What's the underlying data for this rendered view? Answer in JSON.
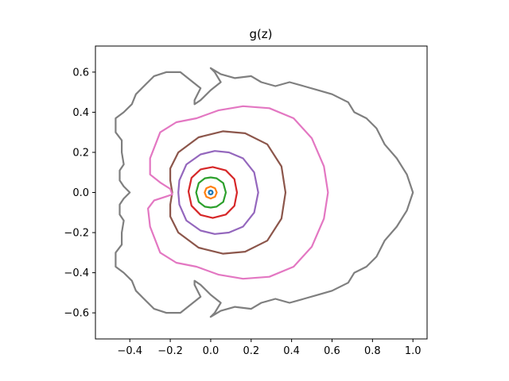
{
  "chart_data": {
    "type": "line",
    "title": "g(z)",
    "xlabel": "",
    "ylabel": "",
    "xlim": [
      -0.57,
      1.07
    ],
    "ylim": [
      -0.73,
      0.73
    ],
    "xticks": [
      -0.4,
      -0.2,
      0.0,
      0.2,
      0.4,
      0.6,
      0.8,
      1.0
    ],
    "xtick_labels": [
      "−0.4",
      "−0.2",
      "0.0",
      "0.2",
      "0.4",
      "0.6",
      "0.8",
      "1.0"
    ],
    "yticks": [
      -0.6,
      -0.4,
      -0.2,
      0.0,
      0.2,
      0.4,
      0.6
    ],
    "ytick_labels": [
      "−0.6",
      "−0.4",
      "−0.2",
      "0.0",
      "0.2",
      "0.4",
      "0.6"
    ],
    "grid": false,
    "legend": "none",
    "series": [
      {
        "color": "#1f77b4",
        "points": [
          [
            0.01,
            0
          ],
          [
            0.0071,
            0.0071
          ],
          [
            0,
            0.01
          ],
          [
            -0.0071,
            0.0071
          ],
          [
            -0.01,
            0
          ],
          [
            -0.0071,
            -0.0071
          ],
          [
            0,
            -0.01
          ],
          [
            0.0071,
            -0.0071
          ],
          [
            0.01,
            0
          ]
        ]
      },
      {
        "color": "#ff7f0e",
        "points": [
          [
            0.03,
            0
          ],
          [
            0.0212,
            0.0212
          ],
          [
            0,
            0.03
          ],
          [
            -0.0212,
            0.0212
          ],
          [
            -0.03,
            0
          ],
          [
            -0.0212,
            -0.0212
          ],
          [
            0,
            -0.03
          ],
          [
            0.0212,
            -0.0212
          ],
          [
            0.03,
            0
          ]
        ]
      },
      {
        "color": "#2ca02c",
        "points": [
          [
            0.075,
            0
          ],
          [
            0.062,
            0.047
          ],
          [
            0.029,
            0.071
          ],
          [
            0,
            0.075
          ],
          [
            -0.029,
            0.071
          ],
          [
            -0.059,
            0.047
          ],
          [
            -0.072,
            0
          ],
          [
            -0.059,
            -0.047
          ],
          [
            -0.029,
            -0.071
          ],
          [
            0,
            -0.075
          ],
          [
            0.029,
            -0.071
          ],
          [
            0.062,
            -0.047
          ],
          [
            0.075,
            0
          ]
        ]
      },
      {
        "color": "#d62728",
        "points": [
          [
            0.13,
            0
          ],
          [
            0.117,
            0.067
          ],
          [
            0.075,
            0.11
          ],
          [
            0.01,
            0.127
          ],
          [
            -0.05,
            0.115
          ],
          [
            -0.095,
            0.073
          ],
          [
            -0.11,
            0.005
          ],
          [
            -0.095,
            -0.066
          ],
          [
            -0.05,
            -0.112
          ],
          [
            0.01,
            -0.127
          ],
          [
            0.075,
            -0.11
          ],
          [
            0.117,
            -0.067
          ],
          [
            0.13,
            0
          ]
        ]
      },
      {
        "color": "#9467bd",
        "points": [
          [
            0.235,
            0
          ],
          [
            0.215,
            0.1
          ],
          [
            0.16,
            0.17
          ],
          [
            0.09,
            0.2
          ],
          [
            0.02,
            0.207
          ],
          [
            -0.05,
            0.19
          ],
          [
            -0.12,
            0.14
          ],
          [
            -0.155,
            0.06
          ],
          [
            -0.16,
            0
          ],
          [
            -0.155,
            -0.06
          ],
          [
            -0.12,
            -0.14
          ],
          [
            -0.05,
            -0.19
          ],
          [
            0.02,
            -0.207
          ],
          [
            0.09,
            -0.2
          ],
          [
            0.16,
            -0.17
          ],
          [
            0.215,
            -0.1
          ],
          [
            0.235,
            0
          ]
        ]
      },
      {
        "color": "#8c564b",
        "points": [
          [
            0.37,
            0
          ],
          [
            0.35,
            0.13
          ],
          [
            0.28,
            0.24
          ],
          [
            0.17,
            0.295
          ],
          [
            0.06,
            0.305
          ],
          [
            -0.06,
            0.275
          ],
          [
            -0.16,
            0.2
          ],
          [
            -0.2,
            0.12
          ],
          [
            -0.2,
            0.06
          ],
          [
            -0.19,
            0.0
          ],
          [
            -0.2,
            -0.06
          ],
          [
            -0.2,
            -0.12
          ],
          [
            -0.16,
            -0.2
          ],
          [
            -0.06,
            -0.275
          ],
          [
            0.06,
            -0.305
          ],
          [
            0.17,
            -0.295
          ],
          [
            0.28,
            -0.24
          ],
          [
            0.35,
            -0.13
          ],
          [
            0.37,
            0
          ]
        ]
      },
      {
        "color": "#e377c2",
        "points": [
          [
            0.58,
            0
          ],
          [
            0.56,
            0.13
          ],
          [
            0.5,
            0.27
          ],
          [
            0.41,
            0.37
          ],
          [
            0.29,
            0.42
          ],
          [
            0.16,
            0.43
          ],
          [
            0.04,
            0.41
          ],
          [
            -0.07,
            0.37
          ],
          [
            -0.17,
            0.35
          ],
          [
            -0.25,
            0.3
          ],
          [
            -0.3,
            0.17
          ],
          [
            -0.3,
            0.09
          ],
          [
            -0.25,
            0.05
          ],
          [
            -0.2,
            0.018
          ],
          [
            -0.19,
            -0.01
          ],
          [
            -0.22,
            -0.02
          ],
          [
            -0.28,
            -0.04
          ],
          [
            -0.31,
            -0.08
          ],
          [
            -0.3,
            -0.17
          ],
          [
            -0.25,
            -0.3
          ],
          [
            -0.17,
            -0.35
          ],
          [
            -0.07,
            -0.37
          ],
          [
            0.04,
            -0.41
          ],
          [
            0.16,
            -0.43
          ],
          [
            0.29,
            -0.42
          ],
          [
            0.41,
            -0.37
          ],
          [
            0.5,
            -0.27
          ],
          [
            0.56,
            -0.13
          ],
          [
            0.58,
            0
          ]
        ]
      },
      {
        "color": "#7f7f7f",
        "points": [
          [
            1.0,
            0
          ],
          [
            0.97,
            0.09
          ],
          [
            0.92,
            0.17
          ],
          [
            0.86,
            0.24
          ],
          [
            0.82,
            0.32
          ],
          [
            0.77,
            0.37
          ],
          [
            0.71,
            0.4
          ],
          [
            0.68,
            0.45
          ],
          [
            0.6,
            0.49
          ],
          [
            0.53,
            0.51
          ],
          [
            0.46,
            0.53
          ],
          [
            0.39,
            0.55
          ],
          [
            0.32,
            0.53
          ],
          [
            0.25,
            0.55
          ],
          [
            0.2,
            0.58
          ],
          [
            0.12,
            0.57
          ],
          [
            0.05,
            0.59
          ],
          [
            0.0,
            0.62
          ],
          [
            0.02,
            0.6
          ],
          [
            0.05,
            0.55
          ],
          [
            0.0,
            0.51
          ],
          [
            -0.05,
            0.46
          ],
          [
            -0.08,
            0.44
          ],
          [
            -0.08,
            0.46
          ],
          [
            -0.05,
            0.52
          ],
          [
            -0.1,
            0.56
          ],
          [
            -0.15,
            0.6
          ],
          [
            -0.22,
            0.6
          ],
          [
            -0.28,
            0.58
          ],
          [
            -0.33,
            0.53
          ],
          [
            -0.37,
            0.49
          ],
          [
            -0.39,
            0.44
          ],
          [
            -0.43,
            0.4
          ],
          [
            -0.47,
            0.37
          ],
          [
            -0.47,
            0.3
          ],
          [
            -0.44,
            0.26
          ],
          [
            -0.44,
            0.2
          ],
          [
            -0.43,
            0.14
          ],
          [
            -0.45,
            0.11
          ],
          [
            -0.45,
            0.06
          ],
          [
            -0.43,
            0.03
          ],
          [
            -0.4,
            0.0
          ],
          [
            -0.43,
            -0.03
          ],
          [
            -0.45,
            -0.06
          ],
          [
            -0.45,
            -0.11
          ],
          [
            -0.43,
            -0.14
          ],
          [
            -0.44,
            -0.2
          ],
          [
            -0.44,
            -0.26
          ],
          [
            -0.47,
            -0.3
          ],
          [
            -0.47,
            -0.37
          ],
          [
            -0.43,
            -0.4
          ],
          [
            -0.39,
            -0.44
          ],
          [
            -0.37,
            -0.49
          ],
          [
            -0.33,
            -0.53
          ],
          [
            -0.28,
            -0.58
          ],
          [
            -0.22,
            -0.6
          ],
          [
            -0.15,
            -0.6
          ],
          [
            -0.1,
            -0.56
          ],
          [
            -0.05,
            -0.52
          ],
          [
            -0.08,
            -0.46
          ],
          [
            -0.08,
            -0.44
          ],
          [
            -0.05,
            -0.46
          ],
          [
            0.0,
            -0.51
          ],
          [
            0.05,
            -0.55
          ],
          [
            0.02,
            -0.6
          ],
          [
            0.0,
            -0.62
          ],
          [
            0.05,
            -0.59
          ],
          [
            0.12,
            -0.57
          ],
          [
            0.2,
            -0.58
          ],
          [
            0.25,
            -0.55
          ],
          [
            0.32,
            -0.53
          ],
          [
            0.39,
            -0.55
          ],
          [
            0.46,
            -0.53
          ],
          [
            0.53,
            -0.51
          ],
          [
            0.6,
            -0.49
          ],
          [
            0.68,
            -0.45
          ],
          [
            0.71,
            -0.4
          ],
          [
            0.77,
            -0.37
          ],
          [
            0.82,
            -0.32
          ],
          [
            0.86,
            -0.24
          ],
          [
            0.92,
            -0.17
          ],
          [
            0.97,
            -0.09
          ],
          [
            1.0,
            0
          ]
        ]
      }
    ]
  }
}
